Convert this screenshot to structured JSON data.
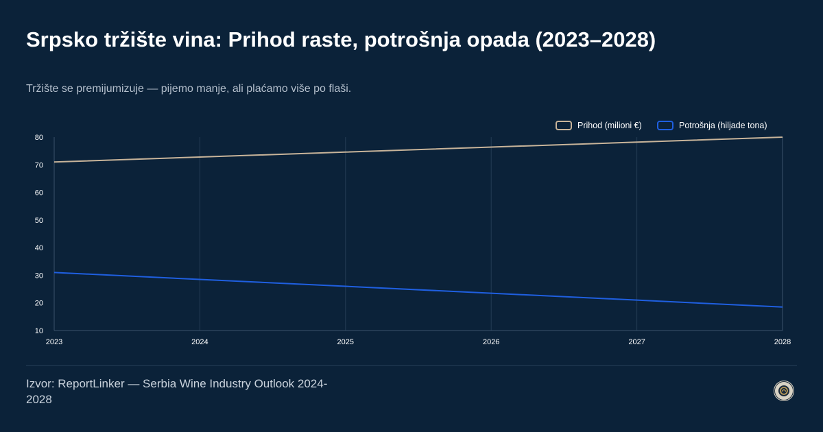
{
  "header": {
    "title": "Srpsko tržište vina: Prihod raste, potrošnja opada (2023–2028)",
    "subtitle": "Tržište se premijumizuje — pijemo manje, ali plaćamo više po flaši."
  },
  "footer": {
    "source": "Izvor: ReportLinker — Serbia Wine Industry Outlook 2024-2028",
    "badge_icon": "seal-badge-icon"
  },
  "colors": {
    "background": "#0b2239",
    "revenue": "#c8b49a",
    "consumption": "#1f5fe0",
    "grid": "#253d55"
  },
  "chart_data": {
    "type": "line",
    "x": [
      "2023",
      "2024",
      "2025",
      "2026",
      "2027",
      "2028"
    ],
    "ylim": [
      10,
      80
    ],
    "yticks": [
      10,
      20,
      30,
      40,
      50,
      60,
      70,
      80
    ],
    "grid": true,
    "legend_position": "top-right",
    "series": [
      {
        "name": "Prihod (milioni €)",
        "values": [
          71,
          72.8,
          74.6,
          76.4,
          78.2,
          80
        ],
        "color": "#c8b49a"
      },
      {
        "name": "Potrošnja (hiljade tona)",
        "values": [
          31,
          28.5,
          26,
          23.5,
          21,
          18.5
        ],
        "color": "#1f5fe0"
      }
    ]
  }
}
